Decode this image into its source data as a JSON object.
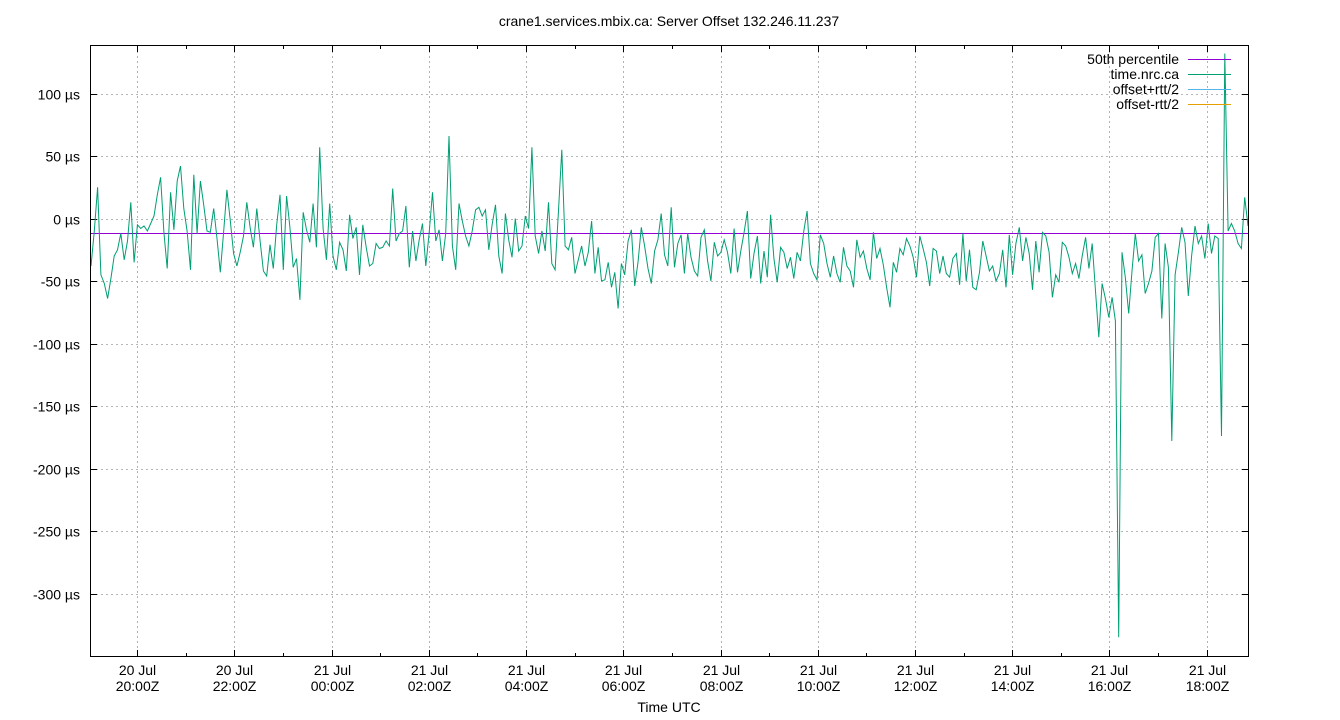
{
  "chart_data": {
    "type": "line",
    "title": "crane1.services.mbix.ca: Server Offset 132.246.11.237",
    "xlabel": "Time UTC",
    "ylabel": "",
    "y_unit": "µs",
    "ylim": [
      -350,
      138
    ],
    "y_ticks": [
      100,
      50,
      0,
      -50,
      -100,
      -150,
      -200,
      -250,
      -300
    ],
    "y_tick_labels": [
      "100 µs",
      "50 µs",
      "0 µs",
      "-50 µs",
      "-100 µs",
      "-150 µs",
      "-200 µs",
      "-250 µs",
      "-300 µs"
    ],
    "xlim_hours": [
      19.05,
      20.0,
      42.85
    ],
    "x_ticks": [
      {
        "date": "20 Jul",
        "time": "20:00Z"
      },
      {
        "date": "20 Jul",
        "time": "22:00Z"
      },
      {
        "date": "21 Jul",
        "time": "00:00Z"
      },
      {
        "date": "21 Jul",
        "time": "02:00Z"
      },
      {
        "date": "21 Jul",
        "time": "04:00Z"
      },
      {
        "date": "21 Jul",
        "time": "06:00Z"
      },
      {
        "date": "21 Jul",
        "time": "08:00Z"
      },
      {
        "date": "21 Jul",
        "time": "10:00Z"
      },
      {
        "date": "21 Jul",
        "time": "12:00Z"
      },
      {
        "date": "21 Jul",
        "time": "14:00Z"
      },
      {
        "date": "21 Jul",
        "time": "16:00Z"
      },
      {
        "date": "21 Jul",
        "time": "18:00Z"
      }
    ],
    "x_range": [
      "20 Jul 19:03Z",
      "21 Jul 18:51Z"
    ],
    "grid": true,
    "legend_position": "top-right",
    "series": [
      {
        "name": "50th percentile",
        "color": "#9400d3",
        "kind": "constant",
        "value": -12
      },
      {
        "name": "time.nrc.ca",
        "color": "#009e73",
        "kind": "line",
        "values": [
          -38,
          -10,
          25,
          -45,
          -52,
          -64,
          -48,
          -30,
          -25,
          -12,
          -33,
          -18,
          13,
          -35,
          -5,
          -8,
          -6,
          -10,
          -4,
          2,
          19,
          33,
          -11,
          -40,
          21,
          -9,
          30,
          42,
          8,
          -10,
          -41,
          35,
          -12,
          30,
          11,
          -10,
          -11,
          8,
          -16,
          -43,
          -11,
          23,
          -1,
          -28,
          -38,
          -27,
          -14,
          13,
          -7,
          -23,
          8,
          -18,
          -42,
          -46,
          -21,
          -40,
          -5,
          19,
          -41,
          18,
          -7,
          -39,
          -32,
          -65,
          5,
          -9,
          -19,
          12,
          -23,
          57,
          -8,
          -33,
          12,
          -30,
          -41,
          -19,
          -25,
          -42,
          3,
          -16,
          -7,
          -45,
          -5,
          -23,
          -38,
          -36,
          -20,
          -24,
          -23,
          -18,
          -22,
          24,
          -18,
          -12,
          -10,
          10,
          -39,
          -10,
          -34,
          -17,
          -4,
          -38,
          -12,
          21,
          -18,
          -9,
          -34,
          -12,
          66,
          -22,
          -41,
          12,
          -2,
          -14,
          -22,
          -10,
          7,
          9,
          2,
          7,
          -25,
          -5,
          11,
          -30,
          -44,
          4,
          -17,
          -31,
          0,
          -26,
          -22,
          2,
          -8,
          57,
          -14,
          -28,
          -10,
          -26,
          13,
          -36,
          -41,
          5,
          55,
          -22,
          -25,
          -15,
          -44,
          -33,
          -22,
          -38,
          -27,
          -2,
          -44,
          -23,
          -50,
          -49,
          -35,
          -55,
          -43,
          -72,
          -36,
          -45,
          -18,
          -9,
          -54,
          -35,
          -7,
          -22,
          -40,
          -52,
          -26,
          -17,
          4,
          -29,
          -38,
          9,
          -39,
          -20,
          -13,
          -44,
          -12,
          -31,
          -42,
          -46,
          -15,
          -9,
          -34,
          -50,
          -19,
          -30,
          -27,
          -17,
          -27,
          -44,
          -8,
          -43,
          -26,
          -11,
          6,
          -48,
          -28,
          -14,
          -52,
          -26,
          -47,
          3,
          -32,
          -51,
          -23,
          -27,
          -40,
          -31,
          -48,
          -27,
          -34,
          -10,
          6,
          -36,
          -44,
          -49,
          -13,
          -20,
          -36,
          -47,
          -30,
          -44,
          -51,
          -23,
          -38,
          -42,
          -55,
          -17,
          -31,
          -26,
          -40,
          -49,
          -11,
          -32,
          -24,
          -37,
          -55,
          -71,
          -35,
          -43,
          -24,
          -29,
          -16,
          -22,
          -31,
          -47,
          -14,
          -24,
          -35,
          -54,
          -24,
          -26,
          -44,
          -30,
          -44,
          -47,
          -32,
          -28,
          -53,
          -12,
          -50,
          -25,
          -55,
          -57,
          -43,
          -18,
          -30,
          -42,
          -38,
          -50,
          -44,
          -25,
          -55,
          -13,
          -45,
          -20,
          -7,
          -34,
          -15,
          -28,
          -57,
          -18,
          -43,
          -11,
          -14,
          -27,
          -63,
          -45,
          -51,
          -19,
          -22,
          -31,
          -44,
          -36,
          -48,
          -30,
          -15,
          -40,
          -20,
          -58,
          -95,
          -52,
          -64,
          -79,
          -63,
          -82,
          -335,
          -27,
          -47,
          -76,
          -42,
          -12,
          -34,
          -29,
          -60,
          -52,
          -42,
          -15,
          -12,
          -80,
          -20,
          -39,
          -178,
          -45,
          -27,
          -7,
          -19,
          -62,
          -30,
          -6,
          -20,
          -14,
          -32,
          -4,
          -28,
          -14,
          -16,
          -174,
          132,
          -10,
          -4,
          -10,
          -20,
          -24,
          17,
          -6
        ]
      },
      {
        "name": "offset+rtt/2",
        "color": "#56b4e9",
        "kind": "none"
      },
      {
        "name": "offset-rtt/2",
        "color": "#e69f00",
        "kind": "none"
      }
    ]
  }
}
